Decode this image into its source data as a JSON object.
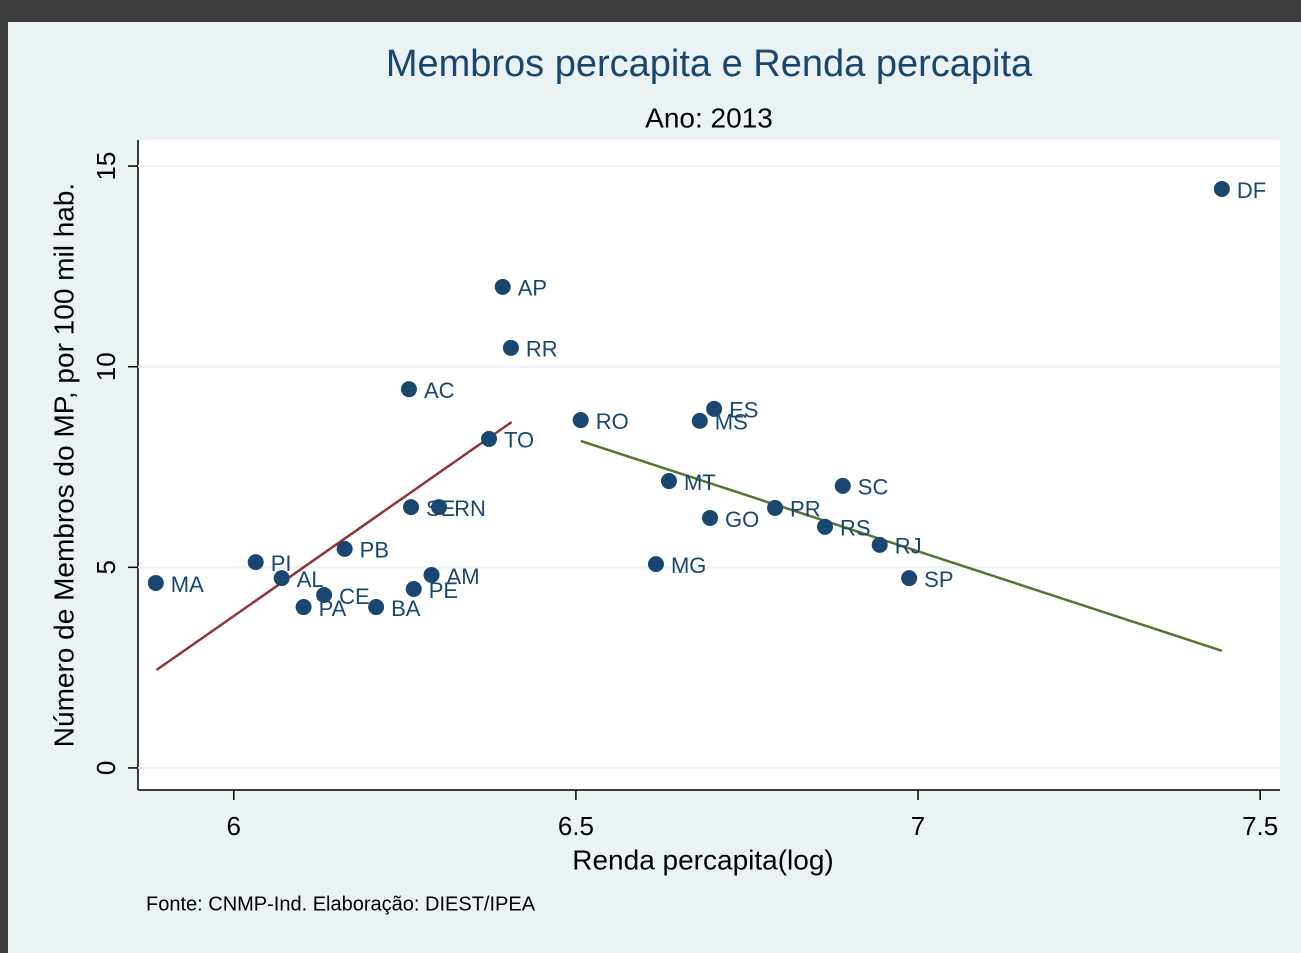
{
  "chart_data": {
    "type": "scatter",
    "title": "Membros percapita e Renda percapita",
    "subtitle": "Ano: 2013",
    "x_label": "Renda percapita(log)",
    "y_label": "Número de Membros do MP, por 100 mil hab.",
    "note": "Fonte: CNMP-Ind. Elaboração: DIEST/IPEA",
    "xlim": [
      5.86,
      7.529
    ],
    "ylim": [
      -0.55,
      15.65
    ],
    "xticks": [
      6,
      6.5,
      7,
      7.5
    ],
    "yticks": [
      0,
      5,
      10,
      15
    ],
    "grid": true,
    "color": "#1a476f",
    "points": [
      {
        "label": "MA",
        "x": 5.886,
        "y": 4.61
      },
      {
        "label": "PI",
        "x": 6.032,
        "y": 5.13
      },
      {
        "label": "AL",
        "x": 6.07,
        "y": 4.73
      },
      {
        "label": "PA",
        "x": 6.102,
        "y": 4.01
      },
      {
        "label": "CE",
        "x": 6.132,
        "y": 4.31
      },
      {
        "label": "PB",
        "x": 6.162,
        "y": 5.46
      },
      {
        "label": "BA",
        "x": 6.208,
        "y": 4.01
      },
      {
        "label": "AC",
        "x": 6.256,
        "y": 9.44
      },
      {
        "label": "SE",
        "x": 6.259,
        "y": 6.5
      },
      {
        "label": "RN",
        "x": 6.3,
        "y": 6.5
      },
      {
        "label": "AM",
        "x": 6.289,
        "y": 4.81
      },
      {
        "label": "PE",
        "x": 6.263,
        "y": 4.46
      },
      {
        "label": "TO",
        "x": 6.373,
        "y": 8.2
      },
      {
        "label": "AP",
        "x": 6.393,
        "y": 11.99
      },
      {
        "label": "RR",
        "x": 6.405,
        "y": 10.47
      },
      {
        "label": "RO",
        "x": 6.507,
        "y": 8.67
      },
      {
        "label": "MG",
        "x": 6.617,
        "y": 5.08
      },
      {
        "label": "MT",
        "x": 6.636,
        "y": 7.15
      },
      {
        "label": "MS",
        "x": 6.681,
        "y": 8.65
      },
      {
        "label": "ES",
        "x": 6.702,
        "y": 8.95
      },
      {
        "label": "GO",
        "x": 6.696,
        "y": 6.23
      },
      {
        "label": "PR",
        "x": 6.791,
        "y": 6.48
      },
      {
        "label": "RS",
        "x": 6.864,
        "y": 6.01
      },
      {
        "label": "SC",
        "x": 6.89,
        "y": 7.03
      },
      {
        "label": "RJ",
        "x": 6.944,
        "y": 5.56
      },
      {
        "label": "SP",
        "x": 6.987,
        "y": 4.73
      },
      {
        "label": "DF",
        "x": 7.444,
        "y": 14.43
      }
    ],
    "fit_lines": [
      {
        "color": "#90353b",
        "x": [
          5.887,
          6.406
        ],
        "y": [
          2.44,
          8.62
        ]
      },
      {
        "color": "#55752f",
        "x": [
          6.507,
          7.444
        ],
        "y": [
          8.15,
          2.92
        ]
      }
    ]
  }
}
